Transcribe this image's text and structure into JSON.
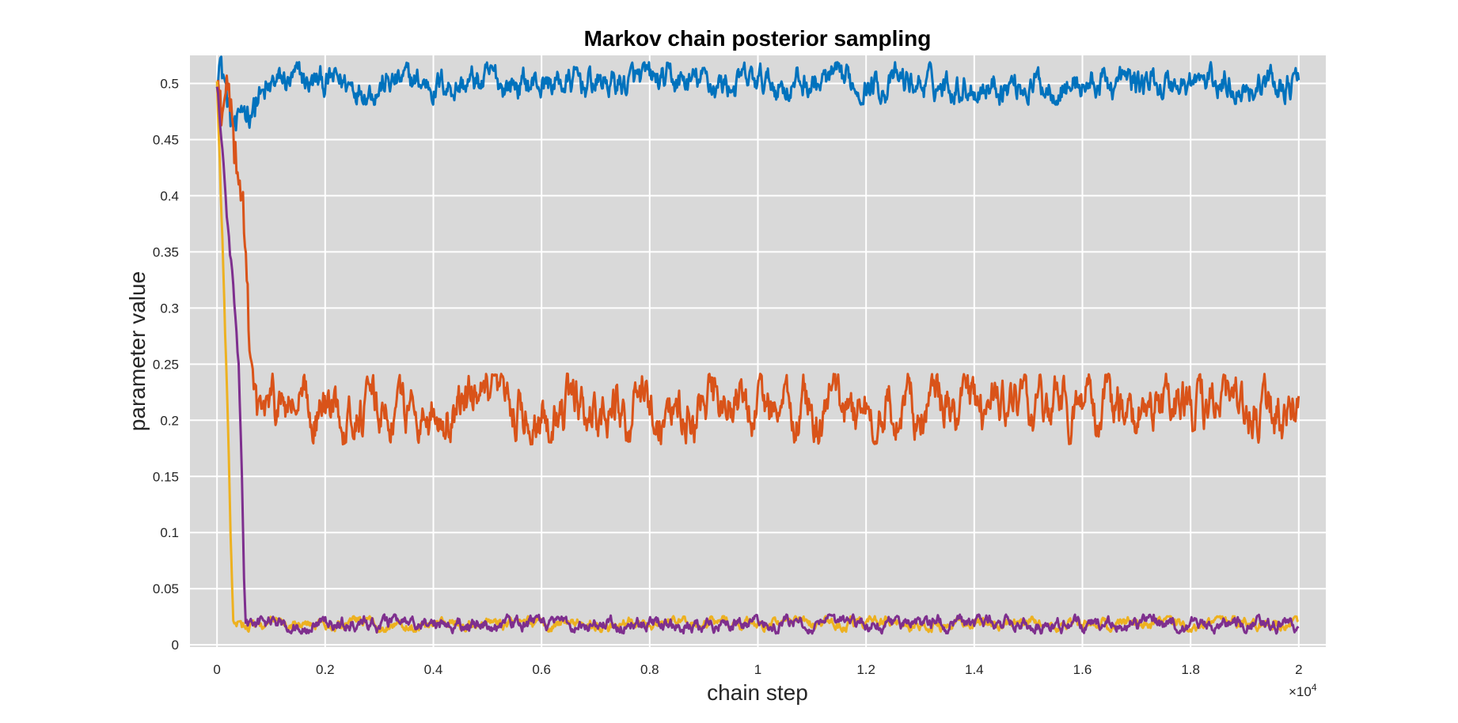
{
  "chart_data": {
    "type": "line",
    "title": "Markov chain posterior sampling",
    "xlabel": "chain step",
    "ylabel": "parameter value",
    "x_exponent_prefix": "×10",
    "x_exponent_power": "4",
    "xlim": [
      -500,
      20500
    ],
    "ylim": [
      -0.002,
      0.525
    ],
    "xticks": [
      0,
      2000,
      4000,
      6000,
      8000,
      10000,
      12000,
      14000,
      16000,
      18000,
      20000
    ],
    "xtick_labels": [
      "0",
      "0.2",
      "0.4",
      "0.6",
      "0.8",
      "1",
      "1.2",
      "1.4",
      "1.6",
      "1.8",
      "2"
    ],
    "yticks": [
      0,
      0.05,
      0.1,
      0.15,
      0.2,
      0.25,
      0.3,
      0.35,
      0.4,
      0.45,
      0.5
    ],
    "ytick_labels": [
      "0",
      "0.05",
      "0.1",
      "0.15",
      "0.2",
      "0.25",
      "0.3",
      "0.35",
      "0.4",
      "0.45",
      "0.5"
    ],
    "grid": true,
    "background": "#d9d9d9",
    "n_steps": 20000,
    "series": [
      {
        "color": "#0072bd",
        "start_value": 0.505,
        "burn_in_points": [
          [
            0,
            0.505
          ],
          [
            60,
            0.52
          ],
          [
            150,
            0.5
          ],
          [
            250,
            0.47
          ],
          [
            350,
            0.46
          ],
          [
            450,
            0.48
          ],
          [
            600,
            0.47
          ],
          [
            800,
            0.49
          ],
          [
            1000,
            0.497
          ]
        ],
        "stationary_mean": 0.5,
        "stationary_range": [
          0.482,
          0.52
        ]
      },
      {
        "color": "#d95319",
        "start_value": 0.505,
        "burn_in_points": [
          [
            0,
            0.505
          ],
          [
            100,
            0.47
          ],
          [
            200,
            0.5
          ],
          [
            300,
            0.45
          ],
          [
            400,
            0.42
          ],
          [
            500,
            0.38
          ],
          [
            550,
            0.33
          ],
          [
            600,
            0.26
          ],
          [
            700,
            0.22
          ],
          [
            900,
            0.21
          ]
        ],
        "stationary_mean": 0.21,
        "stationary_range": [
          0.18,
          0.243
        ]
      },
      {
        "color": "#edb120",
        "start_value": 0.5,
        "burn_in_points": [
          [
            0,
            0.5
          ],
          [
            50,
            0.43
          ],
          [
            100,
            0.36
          ],
          [
            150,
            0.28
          ],
          [
            200,
            0.2
          ],
          [
            250,
            0.1
          ],
          [
            280,
            0.05
          ],
          [
            300,
            0.02
          ],
          [
            500,
            0.019
          ]
        ],
        "stationary_mean": 0.0185,
        "stationary_range": [
          0.012,
          0.026
        ]
      },
      {
        "color": "#7e2f8e",
        "start_value": 0.5,
        "burn_in_points": [
          [
            0,
            0.5
          ],
          [
            100,
            0.44
          ],
          [
            200,
            0.37
          ],
          [
            300,
            0.32
          ],
          [
            400,
            0.25
          ],
          [
            460,
            0.15
          ],
          [
            500,
            0.06
          ],
          [
            530,
            0.02
          ],
          [
            700,
            0.019
          ]
        ],
        "stationary_mean": 0.0185,
        "stationary_range": [
          0.01,
          0.027
        ]
      }
    ]
  }
}
